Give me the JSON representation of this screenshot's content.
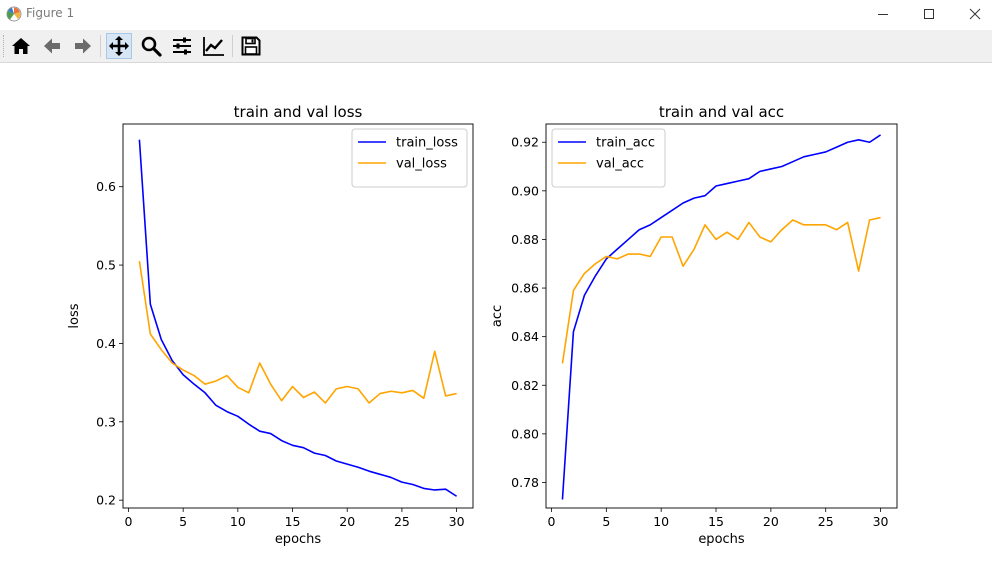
{
  "window": {
    "title": "Figure 1"
  },
  "toolbar": {
    "buttons": [
      {
        "name": "home-button",
        "icon": "home-icon"
      },
      {
        "name": "back-button",
        "icon": "back-arrow-icon"
      },
      {
        "name": "forward-button",
        "icon": "forward-arrow-icon"
      },
      {
        "name": "pan-button",
        "icon": "pan-move-icon",
        "active": true
      },
      {
        "name": "zoom-button",
        "icon": "zoom-magnifier-icon"
      },
      {
        "name": "subplots-button",
        "icon": "configure-subplots-icon"
      },
      {
        "name": "edit-axes-button",
        "icon": "edit-curves-icon"
      },
      {
        "name": "save-button",
        "icon": "save-floppy-icon"
      }
    ]
  },
  "colors": {
    "train": "#0000ff",
    "val": "#ffa500"
  },
  "chart_data": [
    {
      "type": "line",
      "title": "train and val loss",
      "xlabel": "epochs",
      "ylabel": "loss",
      "xlim": [
        -0.5,
        31.5
      ],
      "ylim": [
        0.19,
        0.68
      ],
      "xticks": [
        0,
        5,
        10,
        15,
        20,
        25,
        30
      ],
      "yticks": [
        0.2,
        0.3,
        0.4,
        0.5,
        0.6
      ],
      "ytick_labels": [
        "0.2",
        "0.3",
        "0.4",
        "0.5",
        "0.6"
      ],
      "legend": "top-right",
      "x": [
        1,
        2,
        3,
        4,
        5,
        6,
        7,
        8,
        9,
        10,
        11,
        12,
        13,
        14,
        15,
        16,
        17,
        18,
        19,
        20,
        21,
        22,
        23,
        24,
        25,
        26,
        27,
        28,
        29,
        30
      ],
      "series": [
        {
          "name": "train_loss",
          "color": "#0000ff",
          "values": [
            0.66,
            0.45,
            0.405,
            0.378,
            0.36,
            0.348,
            0.337,
            0.321,
            0.313,
            0.307,
            0.297,
            0.288,
            0.285,
            0.276,
            0.27,
            0.267,
            0.26,
            0.257,
            0.25,
            0.246,
            0.242,
            0.237,
            0.233,
            0.229,
            0.223,
            0.22,
            0.215,
            0.213,
            0.214,
            0.205
          ]
        },
        {
          "name": "val_loss",
          "color": "#ffa500",
          "values": [
            0.505,
            0.412,
            0.392,
            0.375,
            0.366,
            0.359,
            0.348,
            0.352,
            0.359,
            0.344,
            0.337,
            0.375,
            0.348,
            0.327,
            0.345,
            0.331,
            0.338,
            0.324,
            0.342,
            0.345,
            0.342,
            0.324,
            0.336,
            0.339,
            0.337,
            0.34,
            0.33,
            0.39,
            0.333,
            0.336
          ]
        }
      ]
    },
    {
      "type": "line",
      "title": "train and val acc",
      "xlabel": "epochs",
      "ylabel": "acc",
      "xlim": [
        -0.5,
        31.5
      ],
      "ylim": [
        0.7695,
        0.9275
      ],
      "xticks": [
        0,
        5,
        10,
        15,
        20,
        25,
        30
      ],
      "yticks": [
        0.78,
        0.8,
        0.82,
        0.84,
        0.86,
        0.88,
        0.9,
        0.92
      ],
      "ytick_labels": [
        "0.78",
        "0.80",
        "0.82",
        "0.84",
        "0.86",
        "0.88",
        "0.90",
        "0.92"
      ],
      "legend": "top-left",
      "x": [
        1,
        2,
        3,
        4,
        5,
        6,
        7,
        8,
        9,
        10,
        11,
        12,
        13,
        14,
        15,
        16,
        17,
        18,
        19,
        20,
        21,
        22,
        23,
        24,
        25,
        26,
        27,
        28,
        29,
        30
      ],
      "series": [
        {
          "name": "train_acc",
          "color": "#0000ff",
          "values": [
            0.773,
            0.842,
            0.857,
            0.865,
            0.872,
            0.876,
            0.88,
            0.884,
            0.886,
            0.889,
            0.892,
            0.895,
            0.897,
            0.898,
            0.902,
            0.903,
            0.904,
            0.905,
            0.908,
            0.909,
            0.91,
            0.912,
            0.914,
            0.915,
            0.916,
            0.918,
            0.92,
            0.921,
            0.92,
            0.923
          ]
        },
        {
          "name": "val_acc",
          "color": "#ffa500",
          "values": [
            0.829,
            0.859,
            0.866,
            0.87,
            0.873,
            0.872,
            0.874,
            0.874,
            0.873,
            0.881,
            0.881,
            0.869,
            0.876,
            0.886,
            0.88,
            0.883,
            0.88,
            0.887,
            0.881,
            0.879,
            0.884,
            0.888,
            0.886,
            0.886,
            0.886,
            0.884,
            0.887,
            0.867,
            0.888,
            0.889
          ]
        }
      ]
    }
  ]
}
